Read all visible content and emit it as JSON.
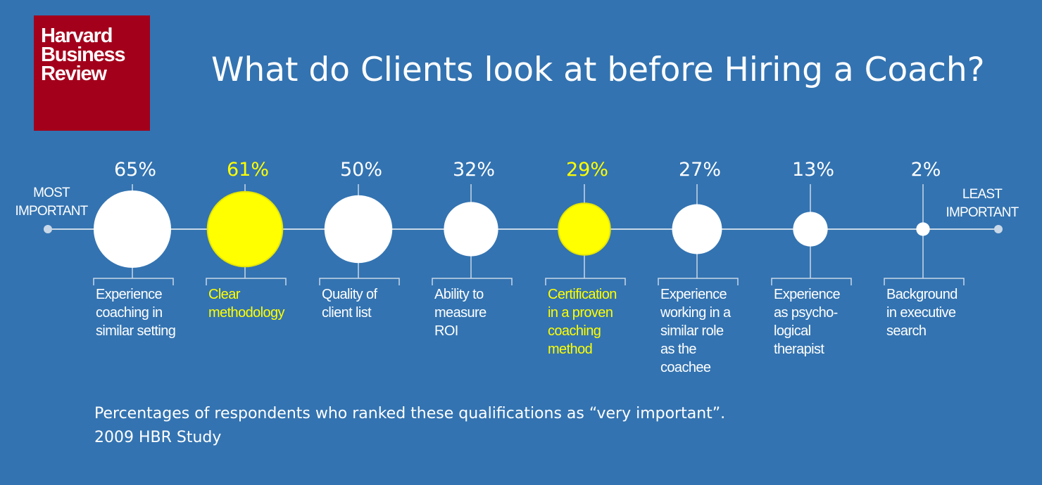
{
  "logo": {
    "lines": [
      "Harvard",
      "Business",
      "Review"
    ]
  },
  "colors": {
    "background": "#3373b1",
    "logo_red": "#a3001b",
    "highlight": "#ffff00",
    "normal": "#ffffff",
    "axis": "#c9d8e8"
  },
  "chart_data": {
    "type": "bubble-timeline",
    "title": "What do Clients look at before Hiring a Coach?",
    "left_label": "MOST\nIMPORTANT",
    "right_label": "LEAST\nIMPORTANT",
    "unit": "%",
    "items": [
      {
        "value": 65,
        "label": "Experience\ncoaching in\nsimilar setting",
        "highlight": false
      },
      {
        "value": 61,
        "label": "Clear\nmethodology",
        "highlight": true
      },
      {
        "value": 50,
        "label": "Quality of\nclient list",
        "highlight": false
      },
      {
        "value": 32,
        "label": "Ability to\nmeasure\nROI",
        "highlight": false
      },
      {
        "value": 29,
        "label": "Certification\nin a proven\ncoaching\nmethod",
        "highlight": true
      },
      {
        "value": 27,
        "label": "Experience\nworking in a\nsimilar role\nas the\ncoachee",
        "highlight": false
      },
      {
        "value": 13,
        "label": "Experience\nas psycho-\nlogical\ntherapist",
        "highlight": false
      },
      {
        "value": 2,
        "label": "Background\nin executive\nsearch",
        "highlight": false
      }
    ]
  },
  "footnote": {
    "line1": "Percentages of respondents who ranked these qualifications as “very important”.",
    "line2": "2009 HBR Study"
  }
}
